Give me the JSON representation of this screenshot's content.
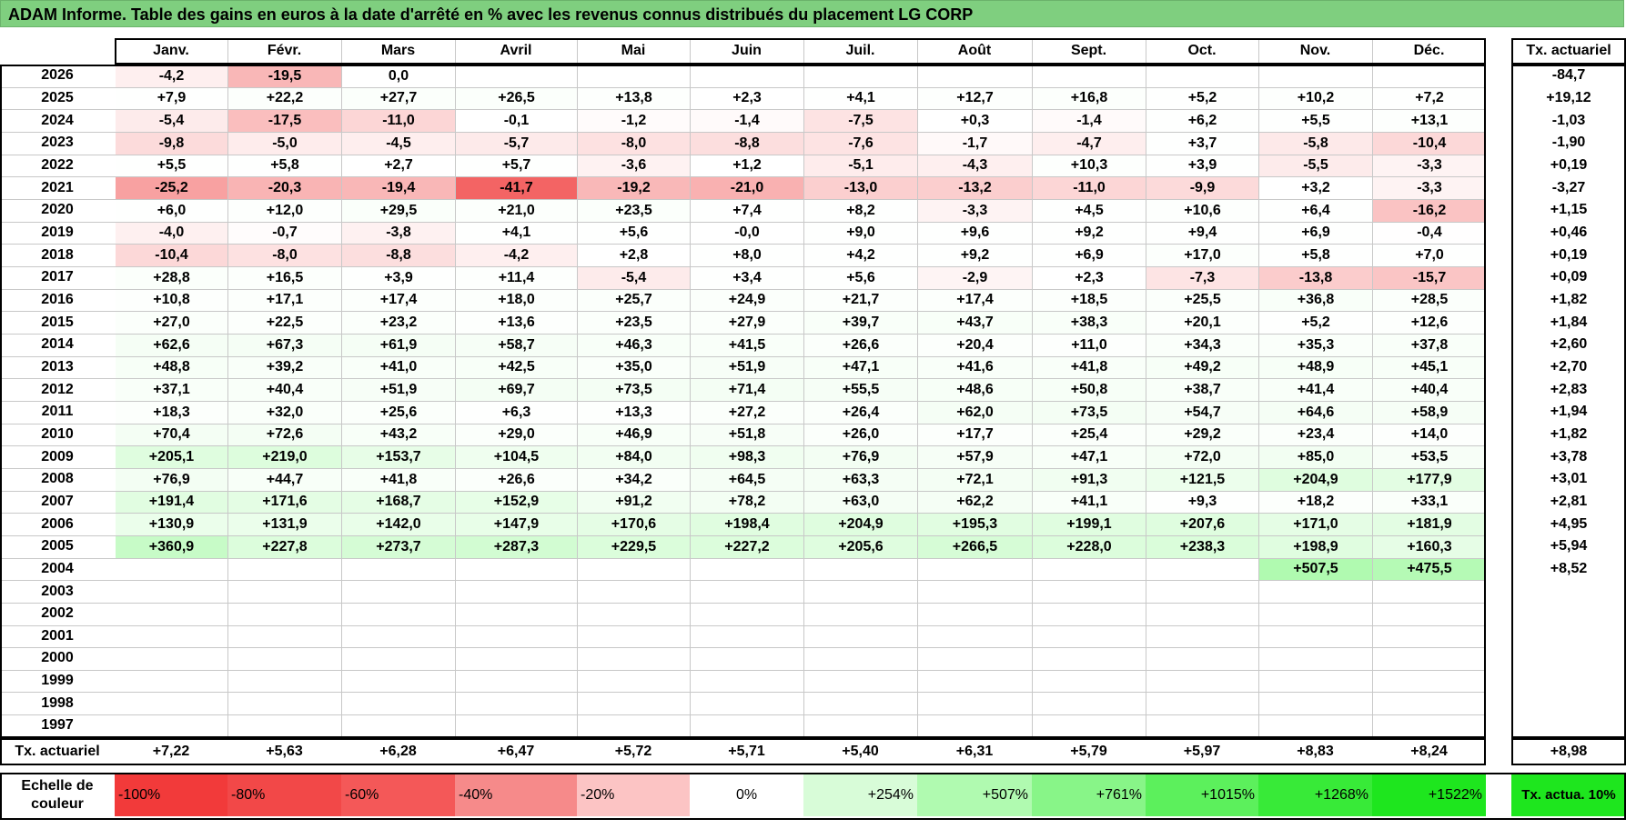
{
  "title": "ADAM Informe. Table des gains en euros à la date d'arrêté en % avec les revenus connus distribués du placement LG CORP",
  "months": [
    "Janv.",
    "Févr.",
    "Mars",
    "Avril",
    "Mai",
    "Juin",
    "Juil.",
    "Août",
    "Sept.",
    "Oct.",
    "Nov.",
    "Déc."
  ],
  "actuarial_header": "Tx. actuariel",
  "rows": [
    {
      "year": "2026",
      "values": [
        "-4,2",
        "-19,5",
        "0,0",
        "",
        "",
        "",
        "",
        "",
        "",
        "",
        "",
        ""
      ],
      "rate": "-84,7"
    },
    {
      "year": "2025",
      "values": [
        "+7,9",
        "+22,2",
        "+27,7",
        "+26,5",
        "+13,8",
        "+2,3",
        "+4,1",
        "+12,7",
        "+16,8",
        "+5,2",
        "+10,2",
        "+7,2"
      ],
      "rate": "+19,12"
    },
    {
      "year": "2024",
      "values": [
        "-5,4",
        "-17,5",
        "-11,0",
        "-0,1",
        "-1,2",
        "-1,4",
        "-7,5",
        "+0,3",
        "-1,4",
        "+6,2",
        "+5,5",
        "+13,1"
      ],
      "rate": "-1,03"
    },
    {
      "year": "2023",
      "values": [
        "-9,8",
        "-5,0",
        "-4,5",
        "-5,7",
        "-8,0",
        "-8,8",
        "-7,6",
        "-1,7",
        "-4,7",
        "+3,7",
        "-5,8",
        "-10,4"
      ],
      "rate": "-1,90"
    },
    {
      "year": "2022",
      "values": [
        "+5,5",
        "+5,8",
        "+2,7",
        "+5,7",
        "-3,6",
        "+1,2",
        "-5,1",
        "-4,3",
        "+10,3",
        "+3,9",
        "-5,5",
        "-3,3"
      ],
      "rate": "+0,19"
    },
    {
      "year": "2021",
      "values": [
        "-25,2",
        "-20,3",
        "-19,4",
        "-41,7",
        "-19,2",
        "-21,0",
        "-13,0",
        "-13,2",
        "-11,0",
        "-9,9",
        "+3,2",
        "-3,3"
      ],
      "rate": "-3,27"
    },
    {
      "year": "2020",
      "values": [
        "+6,0",
        "+12,0",
        "+29,5",
        "+21,0",
        "+23,5",
        "+7,4",
        "+8,2",
        "-3,3",
        "+4,5",
        "+10,6",
        "+6,4",
        "-16,2"
      ],
      "rate": "+1,15"
    },
    {
      "year": "2019",
      "values": [
        "-4,0",
        "-0,7",
        "-3,8",
        "+4,1",
        "+5,6",
        "-0,0",
        "+9,0",
        "+9,6",
        "+9,2",
        "+9,4",
        "+6,9",
        "-0,4"
      ],
      "rate": "+0,46"
    },
    {
      "year": "2018",
      "values": [
        "-10,4",
        "-8,0",
        "-8,8",
        "-4,2",
        "+2,8",
        "+8,0",
        "+4,2",
        "+9,2",
        "+6,9",
        "+17,0",
        "+5,8",
        "+7,0"
      ],
      "rate": "+0,19"
    },
    {
      "year": "2017",
      "values": [
        "+28,8",
        "+16,5",
        "+3,9",
        "+11,4",
        "-5,4",
        "+3,4",
        "+5,6",
        "-2,9",
        "+2,3",
        "-7,3",
        "-13,8",
        "-15,7"
      ],
      "rate": "+0,09"
    },
    {
      "year": "2016",
      "values": [
        "+10,8",
        "+17,1",
        "+17,4",
        "+18,0",
        "+25,7",
        "+24,9",
        "+21,7",
        "+17,4",
        "+18,5",
        "+25,5",
        "+36,8",
        "+28,5"
      ],
      "rate": "+1,82"
    },
    {
      "year": "2015",
      "values": [
        "+27,0",
        "+22,5",
        "+23,2",
        "+13,6",
        "+23,5",
        "+27,9",
        "+39,7",
        "+43,7",
        "+38,3",
        "+20,1",
        "+5,2",
        "+12,6"
      ],
      "rate": "+1,84"
    },
    {
      "year": "2014",
      "values": [
        "+62,6",
        "+67,3",
        "+61,9",
        "+58,7",
        "+46,3",
        "+41,5",
        "+26,6",
        "+20,4",
        "+11,0",
        "+34,3",
        "+35,3",
        "+37,8"
      ],
      "rate": "+2,60"
    },
    {
      "year": "2013",
      "values": [
        "+48,8",
        "+39,2",
        "+41,0",
        "+42,5",
        "+35,0",
        "+51,9",
        "+47,1",
        "+41,6",
        "+41,8",
        "+49,2",
        "+48,9",
        "+45,1"
      ],
      "rate": "+2,70"
    },
    {
      "year": "2012",
      "values": [
        "+37,1",
        "+40,4",
        "+51,9",
        "+69,7",
        "+73,5",
        "+71,4",
        "+55,5",
        "+48,6",
        "+50,8",
        "+38,7",
        "+41,4",
        "+40,4"
      ],
      "rate": "+2,83"
    },
    {
      "year": "2011",
      "values": [
        "+18,3",
        "+32,0",
        "+25,6",
        "+6,3",
        "+13,3",
        "+27,2",
        "+26,4",
        "+62,0",
        "+73,5",
        "+54,7",
        "+64,6",
        "+58,9"
      ],
      "rate": "+1,94"
    },
    {
      "year": "2010",
      "values": [
        "+70,4",
        "+72,6",
        "+43,2",
        "+29,0",
        "+46,9",
        "+51,8",
        "+26,0",
        "+17,7",
        "+25,4",
        "+29,2",
        "+23,4",
        "+14,0"
      ],
      "rate": "+1,82"
    },
    {
      "year": "2009",
      "values": [
        "+205,1",
        "+219,0",
        "+153,7",
        "+104,5",
        "+84,0",
        "+98,3",
        "+76,9",
        "+57,9",
        "+47,1",
        "+72,0",
        "+85,0",
        "+53,5"
      ],
      "rate": "+3,78"
    },
    {
      "year": "2008",
      "values": [
        "+76,9",
        "+44,7",
        "+41,8",
        "+26,6",
        "+34,2",
        "+64,5",
        "+63,3",
        "+72,1",
        "+91,3",
        "+121,5",
        "+204,9",
        "+177,9"
      ],
      "rate": "+3,01"
    },
    {
      "year": "2007",
      "values": [
        "+191,4",
        "+171,6",
        "+168,7",
        "+152,9",
        "+91,2",
        "+78,2",
        "+63,0",
        "+62,2",
        "+41,1",
        "+9,3",
        "+18,2",
        "+33,1"
      ],
      "rate": "+2,81"
    },
    {
      "year": "2006",
      "values": [
        "+130,9",
        "+131,9",
        "+142,0",
        "+147,9",
        "+170,6",
        "+198,4",
        "+204,9",
        "+195,3",
        "+199,1",
        "+207,6",
        "+171,0",
        "+181,9"
      ],
      "rate": "+4,95"
    },
    {
      "year": "2005",
      "values": [
        "+360,9",
        "+227,8",
        "+273,7",
        "+287,3",
        "+229,5",
        "+227,2",
        "+205,6",
        "+266,5",
        "+228,0",
        "+238,3",
        "+198,9",
        "+160,3"
      ],
      "rate": "+5,94"
    },
    {
      "year": "2004",
      "values": [
        "",
        "",
        "",
        "",
        "",
        "",
        "",
        "",
        "",
        "",
        "+507,5",
        "+475,5"
      ],
      "rate": "+8,52"
    },
    {
      "year": "2003",
      "values": [
        "",
        "",
        "",
        "",
        "",
        "",
        "",
        "",
        "",
        "",
        "",
        ""
      ],
      "rate": ""
    },
    {
      "year": "2002",
      "values": [
        "",
        "",
        "",
        "",
        "",
        "",
        "",
        "",
        "",
        "",
        "",
        ""
      ],
      "rate": ""
    },
    {
      "year": "2001",
      "values": [
        "",
        "",
        "",
        "",
        "",
        "",
        "",
        "",
        "",
        "",
        "",
        ""
      ],
      "rate": ""
    },
    {
      "year": "2000",
      "values": [
        "",
        "",
        "",
        "",
        "",
        "",
        "",
        "",
        "",
        "",
        "",
        ""
      ],
      "rate": ""
    },
    {
      "year": "1999",
      "values": [
        "",
        "",
        "",
        "",
        "",
        "",
        "",
        "",
        "",
        "",
        "",
        ""
      ],
      "rate": ""
    },
    {
      "year": "1998",
      "values": [
        "",
        "",
        "",
        "",
        "",
        "",
        "",
        "",
        "",
        "",
        "",
        ""
      ],
      "rate": ""
    },
    {
      "year": "1997",
      "values": [
        "",
        "",
        "",
        "",
        "",
        "",
        "",
        "",
        "",
        "",
        "",
        ""
      ],
      "rate": ""
    }
  ],
  "summary": {
    "label": "Tx. actuariel",
    "values": [
      "+7,22",
      "+5,63",
      "+6,28",
      "+6,47",
      "+5,72",
      "+5,71",
      "+5,40",
      "+6,31",
      "+5,79",
      "+5,97",
      "+8,83",
      "+8,24"
    ],
    "rate": "+8,98"
  },
  "scale": {
    "label": "Echelle de couleur",
    "items": [
      {
        "text": "-100%",
        "color": "#f23a3a",
        "align": "left"
      },
      {
        "text": "-80%",
        "color": "#f24848",
        "align": "left"
      },
      {
        "text": "-60%",
        "color": "#f45858",
        "align": "left"
      },
      {
        "text": "-40%",
        "color": "#f68a8a",
        "align": "left"
      },
      {
        "text": "-20%",
        "color": "#fcc4c4",
        "align": "left"
      },
      {
        "text": "0%",
        "color": "#ffffff",
        "align": "center"
      },
      {
        "text": "+254%",
        "color": "#d8fcd8",
        "align": "right"
      },
      {
        "text": "+507%",
        "color": "#b0fab0",
        "align": "right"
      },
      {
        "text": "+761%",
        "color": "#88f588",
        "align": "right"
      },
      {
        "text": "+1015%",
        "color": "#5cf05c",
        "align": "right"
      },
      {
        "text": "+1268%",
        "color": "#38ea38",
        "align": "right"
      },
      {
        "text": "+1522%",
        "color": "#1ee61e",
        "align": "right"
      }
    ],
    "tx_label": "Tx. actua. 10%",
    "tx_color": "#1ee61e"
  }
}
